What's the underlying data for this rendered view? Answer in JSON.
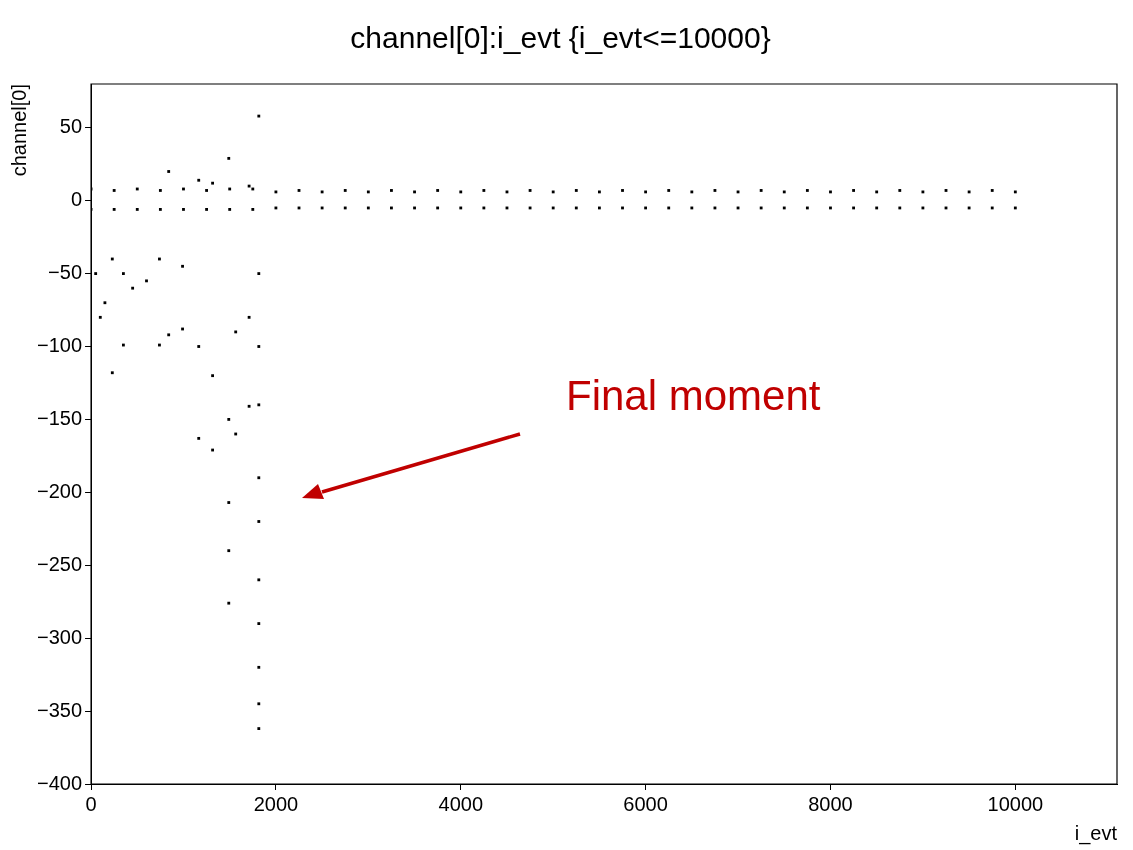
{
  "chart_data": {
    "type": "scatter",
    "title": "channel[0]:i_evt {i_evt<=10000}",
    "xlabel": "i_evt",
    "ylabel": "channel[0]",
    "xlim": [
      0,
      11100
    ],
    "xticks": [
      0,
      2000,
      4000,
      6000,
      8000,
      10000
    ],
    "ylim": [
      -400,
      80
    ],
    "yticks": [
      -400,
      -350,
      -300,
      -250,
      -200,
      -150,
      -100,
      -50,
      0,
      50
    ],
    "grid": false,
    "legend": false,
    "marker": "square",
    "annotations": [
      "Final moment"
    ],
    "series": [
      {
        "color": "#000000",
        "x": [
          0,
          250,
          500,
          750,
          1000,
          1250,
          1500,
          1750,
          2000,
          2250,
          2500,
          2750,
          3000,
          3250,
          3500,
          3750,
          4000,
          4250,
          4500,
          4750,
          5000,
          5250,
          5500,
          5750,
          6000,
          6250,
          6500,
          6750,
          7000,
          7250,
          7500,
          7750,
          8000,
          8250,
          8500,
          8750,
          9000,
          9250,
          9500,
          9750,
          10000,
          0,
          250,
          500,
          750,
          1000,
          1250,
          1500,
          1750,
          2000,
          2250,
          2500,
          2750,
          3000,
          3250,
          3500,
          3750,
          4000,
          4250,
          4500,
          4750,
          5000,
          5250,
          5500,
          5750,
          6000,
          6250,
          6500,
          6750,
          7000,
          7250,
          7500,
          7750,
          8000,
          8250,
          8500,
          8750,
          9000,
          9250,
          9500,
          9750,
          10000
        ],
        "values": [
          8,
          7,
          8,
          7,
          8,
          7,
          8,
          8,
          6,
          7,
          6,
          7,
          6,
          7,
          6,
          7,
          6,
          7,
          6,
          7,
          6,
          7,
          6,
          7,
          6,
          7,
          6,
          7,
          6,
          7,
          6,
          7,
          6,
          7,
          6,
          7,
          6,
          7,
          6,
          7,
          6,
          -6,
          -6,
          -6,
          -6,
          -6,
          -6,
          -6,
          -6,
          -5,
          -5,
          -5,
          -5,
          -5,
          -5,
          -5,
          -5,
          -5,
          -5,
          -5,
          -5,
          -5,
          -5,
          -5,
          -5,
          -5,
          -5,
          -5,
          -5,
          -5,
          -5,
          -5,
          -5,
          -5,
          -5,
          -5,
          -5,
          -5,
          -5,
          -5,
          -5,
          -5
        ]
      },
      {
        "color": "#000000",
        "x": [
          50,
          100,
          150,
          230,
          230,
          350,
          350,
          450,
          600,
          740,
          740,
          840,
          840,
          990,
          990,
          1165,
          1165,
          1165,
          1315,
          1315,
          1315,
          1490,
          1490,
          1490,
          1490,
          1490,
          1565,
          1565,
          1710,
          1710,
          1710,
          1815,
          1815,
          1815,
          1815,
          1815,
          1815,
          1815,
          1815,
          1815,
          1815,
          1815
        ],
        "values": [
          -50,
          -80,
          -70,
          -118,
          -40,
          -99,
          -50,
          -60,
          -55,
          -99,
          -40,
          -92,
          20,
          -88,
          -45,
          -163,
          -100,
          14,
          -171,
          -120,
          12,
          -276,
          -240,
          -207,
          -150,
          29,
          -160,
          -90,
          -141,
          -80,
          10,
          58,
          -50,
          -100,
          -140,
          -190,
          -220,
          -260,
          -290,
          -320,
          -345,
          -362
        ]
      }
    ]
  }
}
